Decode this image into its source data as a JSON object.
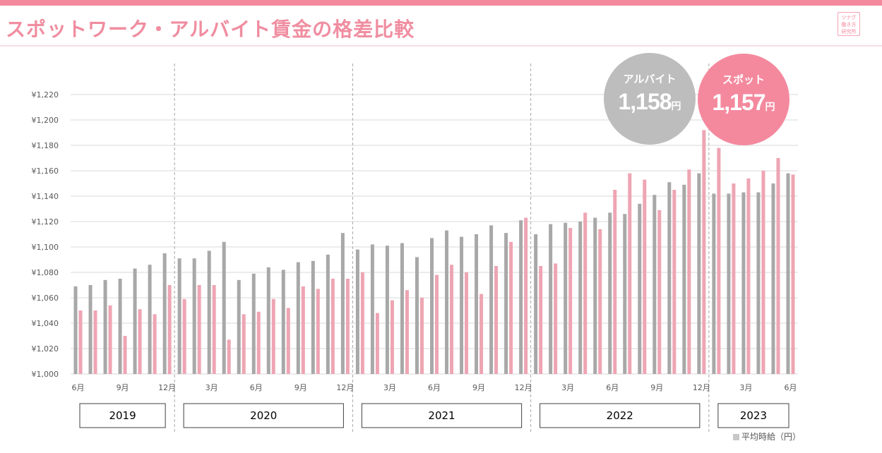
{
  "header": {
    "title": "スポットワーク・アルバイト賃金の格差比較",
    "logo_text": [
      "ツナグ",
      "働き方",
      "研究所"
    ],
    "accent_color": "#f4899e",
    "title_color": "#f08da0"
  },
  "callouts": [
    {
      "label": "アルバイト",
      "value": "1,158",
      "unit": "円",
      "color": "#bdbdbd"
    },
    {
      "label": "スポット",
      "value": "1,157",
      "unit": "円",
      "color": "#f4899e"
    }
  ],
  "legend": {
    "text": "平均時給（円）"
  },
  "chart_data": {
    "type": "bar",
    "ylim": [
      1000,
      1220
    ],
    "y_ticks": [
      1000,
      1020,
      1040,
      1060,
      1080,
      1100,
      1120,
      1140,
      1160,
      1180,
      1200,
      1220
    ],
    "y_tick_labels": [
      "¥1,000",
      "¥1,020",
      "¥1,040",
      "¥1,060",
      "¥1,080",
      "¥1,100",
      "¥1,120",
      "¥1,140",
      "¥1,160",
      "¥1,180",
      "¥1,200",
      "¥1,220"
    ],
    "grid": true,
    "categories": [
      "2019-06",
      "2019-07",
      "2019-08",
      "2019-09",
      "2019-10",
      "2019-11",
      "2019-12",
      "2020-01",
      "2020-02",
      "2020-03",
      "2020-04",
      "2020-05",
      "2020-06",
      "2020-07",
      "2020-08",
      "2020-09",
      "2020-10",
      "2020-11",
      "2020-12",
      "2021-01",
      "2021-02",
      "2021-03",
      "2021-04",
      "2021-05",
      "2021-06",
      "2021-07",
      "2021-08",
      "2021-09",
      "2021-10",
      "2021-11",
      "2021-12",
      "2022-01",
      "2022-02",
      "2022-03",
      "2022-04",
      "2022-05",
      "2022-06",
      "2022-07",
      "2022-08",
      "2022-09",
      "2022-10",
      "2022-11",
      "2022-12",
      "2023-01",
      "2023-02",
      "2023-03",
      "2023-04",
      "2023-05",
      "2023-06"
    ],
    "x_tick_labels": [
      "6月",
      "",
      "",
      "9月",
      "",
      "",
      "12月",
      "",
      "",
      "3月",
      "",
      "",
      "6月",
      "",
      "",
      "9月",
      "",
      "",
      "12月",
      "",
      "",
      "3月",
      "",
      "",
      "6月",
      "",
      "",
      "9月",
      "",
      "",
      "12月",
      "",
      "",
      "3月",
      "",
      "",
      "6月",
      "",
      "",
      "9月",
      "",
      "",
      "12月",
      "",
      "",
      "3月",
      "",
      "",
      "6月"
    ],
    "series": [
      {
        "color": "#a8a8a8",
        "values": [
          1069,
          1070,
          1074,
          1075,
          1083,
          1086,
          1095,
          1091,
          1091,
          1097,
          1104,
          1074,
          1079,
          1084,
          1082,
          1088,
          1089,
          1094,
          1111,
          1098,
          1102,
          1101,
          1103,
          1092,
          1107,
          1113,
          1108,
          1110,
          1117,
          1111,
          1121,
          1110,
          1118,
          1119,
          1120,
          1123,
          1127,
          1126,
          1134,
          1141,
          1151,
          1149,
          1158,
          1142,
          1142,
          1143,
          1143,
          1150,
          1158
        ]
      },
      {
        "color": "#eea5b3",
        "values": [
          1050,
          1050,
          1054,
          1030,
          1051,
          1047,
          1070,
          1059,
          1070,
          1070,
          1027,
          1047,
          1049,
          1059,
          1052,
          1069,
          1067,
          1075,
          1075,
          1080,
          1048,
          1058,
          1066,
          1060,
          1078,
          1086,
          1080,
          1063,
          1085,
          1104,
          1123,
          1085,
          1087,
          1115,
          1127,
          1114,
          1145,
          1158,
          1153,
          1129,
          1145,
          1161,
          1192,
          1178,
          1150,
          1154,
          1160,
          1170,
          1157
        ]
      }
    ],
    "years": [
      {
        "label": "2019",
        "start": 0,
        "end": 6
      },
      {
        "label": "2020",
        "start": 7,
        "end": 18
      },
      {
        "label": "2021",
        "start": 19,
        "end": 30
      },
      {
        "label": "2022",
        "start": 31,
        "end": 42
      },
      {
        "label": "2023",
        "start": 43,
        "end": 48
      }
    ]
  }
}
